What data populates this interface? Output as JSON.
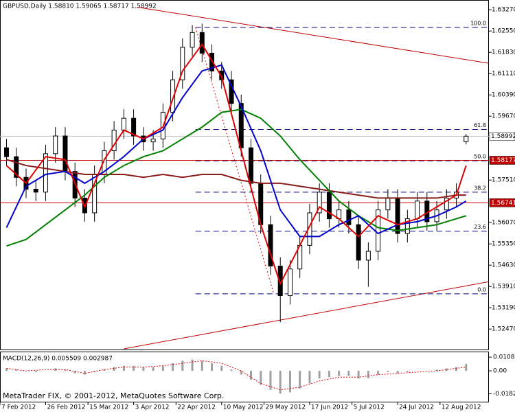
{
  "chart_data": {
    "type": "candlestick",
    "title": "GBPUSD,Daily  1.58810 1.59065 1.58717 1.58992",
    "footer": "MetaTrader FIX, © 2001-2012, MetaQuotes Software Corp.",
    "xlim": [
      0,
      150
    ],
    "xticks": [
      {
        "value": 0,
        "label": "7 Feb 2012"
      },
      {
        "value": 14,
        "label": "26 Feb 2012"
      },
      {
        "value": 27,
        "label": "15 Mar 2012"
      },
      {
        "value": 41,
        "label": "3 Apr 2012"
      },
      {
        "value": 54,
        "label": "22 Apr 2012"
      },
      {
        "value": 68,
        "label": "10 May 2012"
      },
      {
        "value": 81,
        "label": "29 May 2012"
      },
      {
        "value": 95,
        "label": "17 Jun 2012"
      },
      {
        "value": 108,
        "label": "5 Jul 2012"
      },
      {
        "value": 122,
        "label": "24 Jul 2012"
      },
      {
        "value": 135,
        "label": "12 Aug 2012"
      }
    ],
    "ylim": [
      1.518,
      1.6353
    ],
    "yticks": [
      {
        "value": 1.6327,
        "label": "1.63270"
      },
      {
        "value": 1.6255,
        "label": "1.62550"
      },
      {
        "value": 1.6183,
        "label": "1.61830"
      },
      {
        "value": 1.6111,
        "label": "1.61110"
      },
      {
        "value": 1.6039,
        "label": "1.60390"
      },
      {
        "value": 1.5967,
        "label": "1.59670"
      },
      {
        "value": 1.5751,
        "label": "1.57510"
      },
      {
        "value": 1.5607,
        "label": "1.56070"
      },
      {
        "value": 1.5535,
        "label": "1.55350"
      },
      {
        "value": 1.5463,
        "label": "1.54630"
      },
      {
        "value": 1.5391,
        "label": "1.53910"
      },
      {
        "value": 1.5319,
        "label": "1.53190"
      },
      {
        "value": 1.5247,
        "label": "1.52470"
      }
    ],
    "x": [
      2,
      5,
      8,
      11,
      14,
      17,
      20,
      23,
      26,
      29,
      32,
      35,
      38,
      41,
      44,
      47,
      50,
      53,
      56,
      59,
      62,
      65,
      68,
      71,
      74,
      77,
      80,
      83,
      86,
      89,
      92,
      95,
      98,
      101,
      104,
      107,
      110,
      113,
      116,
      119,
      122,
      125,
      128,
      131,
      134,
      137,
      140,
      143
    ],
    "open": [
      1.586,
      1.583,
      1.576,
      1.572,
      1.571,
      1.584,
      1.59,
      1.578,
      1.569,
      1.564,
      1.577,
      1.585,
      1.592,
      1.596,
      1.59,
      1.588,
      1.589,
      1.598,
      1.609,
      1.62,
      1.625,
      1.618,
      1.612,
      1.609,
      1.601,
      1.586,
      1.574,
      1.56,
      1.546,
      1.536,
      1.545,
      1.553,
      1.564,
      1.571,
      1.562,
      1.565,
      1.56,
      1.548,
      1.551,
      1.565,
      1.569,
      1.557,
      1.562,
      1.568,
      1.561,
      1.565,
      1.569,
      1.5881
    ],
    "high": [
      1.589,
      1.586,
      1.579,
      1.575,
      1.587,
      1.593,
      1.593,
      1.581,
      1.572,
      1.58,
      1.588,
      1.595,
      1.599,
      1.599,
      1.593,
      1.592,
      1.601,
      1.612,
      1.623,
      1.6275,
      1.628,
      1.621,
      1.615,
      1.612,
      1.604,
      1.589,
      1.577,
      1.563,
      1.549,
      1.548,
      1.556,
      1.567,
      1.574,
      1.574,
      1.568,
      1.568,
      1.563,
      1.554,
      1.568,
      1.572,
      1.572,
      1.565,
      1.571,
      1.571,
      1.568,
      1.572,
      1.574,
      1.59065
    ],
    "low": [
      1.58,
      1.573,
      1.569,
      1.568,
      1.568,
      1.581,
      1.575,
      1.566,
      1.561,
      1.561,
      1.574,
      1.582,
      1.589,
      1.587,
      1.585,
      1.585,
      1.586,
      1.595,
      1.606,
      1.617,
      1.615,
      1.609,
      1.606,
      1.598,
      1.583,
      1.571,
      1.557,
      1.543,
      1.527,
      1.533,
      1.542,
      1.55,
      1.561,
      1.559,
      1.559,
      1.557,
      1.545,
      1.539,
      1.548,
      1.562,
      1.554,
      1.554,
      1.559,
      1.558,
      1.558,
      1.562,
      1.566,
      1.58717
    ],
    "close": [
      1.583,
      1.576,
      1.572,
      1.571,
      1.584,
      1.59,
      1.578,
      1.569,
      1.564,
      1.577,
      1.585,
      1.592,
      1.596,
      1.59,
      1.588,
      1.589,
      1.598,
      1.609,
      1.62,
      1.625,
      1.618,
      1.612,
      1.609,
      1.601,
      1.586,
      1.574,
      1.56,
      1.546,
      1.536,
      1.545,
      1.553,
      1.564,
      1.571,
      1.562,
      1.565,
      1.56,
      1.548,
      1.551,
      1.565,
      1.569,
      1.557,
      1.562,
      1.568,
      1.561,
      1.565,
      1.569,
      1.571,
      1.58992
    ],
    "candle_color": "#000000",
    "lines": {
      "x": [
        2,
        8,
        14,
        20,
        26,
        32,
        38,
        44,
        50,
        56,
        62,
        68,
        74,
        80,
        86,
        92,
        98,
        104,
        110,
        116,
        122,
        128,
        134,
        140,
        143
      ],
      "series": [
        {
          "color": "#8b1a1a",
          "values": [
            1.582,
            1.58,
            1.579,
            1.578,
            1.577,
            1.577,
            1.577,
            1.576,
            1.577,
            1.576,
            1.577,
            1.577,
            1.575,
            1.574,
            1.574,
            1.573,
            1.572,
            1.571,
            1.57,
            1.569,
            1.569,
            1.569,
            1.569,
            1.57,
            1.57
          ]
        },
        {
          "color": "#008000",
          "values": [
            1.5528,
            1.555,
            1.56,
            1.565,
            1.57,
            1.576,
            1.58,
            1.583,
            1.585,
            1.589,
            1.593,
            1.598,
            1.599,
            1.596,
            1.59,
            1.582,
            1.575,
            1.568,
            1.563,
            1.559,
            1.558,
            1.559,
            1.56,
            1.562,
            1.563
          ]
        },
        {
          "color": "#0000cc",
          "values": [
            1.559,
            1.573,
            1.577,
            1.578,
            1.574,
            1.578,
            1.583,
            1.589,
            1.592,
            1.603,
            1.612,
            1.614,
            1.6,
            1.585,
            1.565,
            1.556,
            1.556,
            1.56,
            1.563,
            1.557,
            1.56,
            1.561,
            1.563,
            1.566,
            1.568
          ]
        },
        {
          "color": "#e00000",
          "values": [
            1.58,
            1.574,
            1.583,
            1.582,
            1.566,
            1.582,
            1.592,
            1.589,
            1.593,
            1.612,
            1.621,
            1.61,
            1.585,
            1.56,
            1.54,
            1.553,
            1.566,
            1.562,
            1.556,
            1.563,
            1.56,
            1.562,
            1.566,
            1.57,
            1.58
          ]
        }
      ]
    },
    "fib": {
      "x": [
        60,
        84
      ],
      "color": "#000080",
      "swing_color": "#e00000",
      "levels": [
        {
          "value": 1.6267,
          "label": "100.0"
        },
        {
          "value": 1.5922,
          "label": "61.8"
        },
        {
          "value": 1.5816,
          "label": "50.0"
        },
        {
          "value": 1.571,
          "label": "38.2"
        },
        {
          "value": 1.5578,
          "label": "23.6"
        },
        {
          "value": 1.5366,
          "label": "0.0"
        }
      ]
    },
    "hlines": [
      {
        "value": 1.58992,
        "color": "#c0c0c0",
        "label_bg": "#ffffff",
        "label_fg": "#000000"
      },
      {
        "value": 1.58177,
        "color": "#c00000",
        "label_bg": "#c00000",
        "label_fg": "#ffffff"
      },
      {
        "value": 1.56741,
        "color": "#c00000",
        "label_bg": "#c00000",
        "label_fg": "#ffffff"
      }
    ],
    "trendlines": {
      "color": "#c00000",
      "items": [
        {
          "x": [
            42,
            150
          ],
          "y": [
            1.6336,
            1.6146
          ]
        },
        {
          "x": [
            38,
            150
          ],
          "y": [
            1.518,
            1.5407
          ]
        }
      ]
    },
    "macd": {
      "title": "MACD(12,26,9) 0.005509 0.002987",
      "ylim": [
        -0.0244,
        0.0147
      ],
      "yticks": [
        0.010844,
        {
          "value": 0,
          "label": "0.00"
        },
        -0.01821
      ],
      "histogram_color": "#a0a0a0",
      "signal_color": "#e00000",
      "histogram": [
        0.002,
        0.001,
        0,
        -0.001,
        0,
        0.002,
        0.001,
        -0.002,
        -0.003,
        -0.001,
        0.001,
        0.003,
        0.004,
        0.004,
        0.003,
        0.003,
        0.004,
        0.006,
        0.008,
        0.009,
        0.008,
        0.006,
        0.004,
        0.001,
        -0.003,
        -0.007,
        -0.011,
        -0.015,
        -0.018,
        -0.017,
        -0.014,
        -0.01,
        -0.006,
        -0.005,
        -0.004,
        -0.004,
        -0.006,
        -0.006,
        -0.003,
        -0.001,
        -0.002,
        -0.001,
        0,
        0,
        0.001,
        0.002,
        0.003,
        0.005509
      ],
      "signal": [
        0.002,
        0,
        0.001,
        0.001,
        -0.002,
        0.001,
        0.003,
        0.003,
        0.004,
        0.006,
        0.008,
        0.006,
        0,
        -0.01,
        -0.015,
        -0.013,
        -0.008,
        -0.005,
        -0.005,
        -0.003,
        -0.002,
        -0.001,
        0,
        0.002,
        0.002987
      ]
    }
  }
}
